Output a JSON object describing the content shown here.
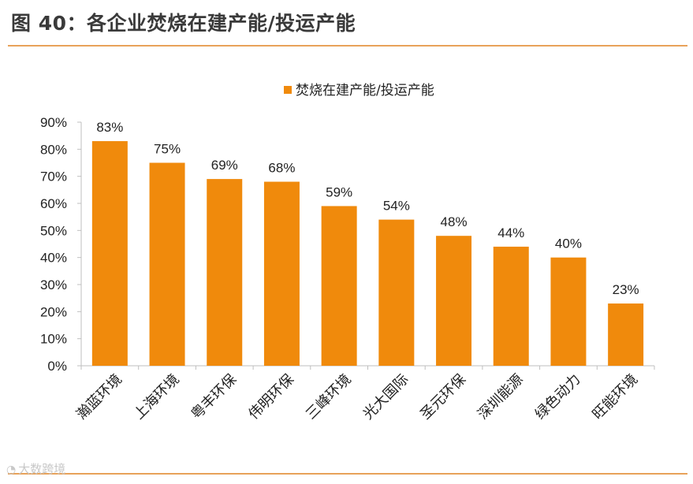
{
  "figure_title": "图 40：各企业焚烧在建产能/投运产能",
  "watermark": "大数跨境",
  "colors": {
    "bar": "#F08A0C",
    "rule": "#E8A25A",
    "axis": "#BFBFBF",
    "text": "#222222"
  },
  "chart_data": {
    "type": "bar",
    "title": "",
    "xlabel": "",
    "ylabel": "",
    "categories": [
      "瀚蓝环境",
      "上海环境",
      "粤丰环保",
      "伟明环保",
      "三峰环境",
      "光大国际",
      "圣元环保",
      "深圳能源",
      "绿色动力",
      "旺能环境"
    ],
    "series": [
      {
        "name": "焚烧在建产能/投运产能",
        "values": [
          83,
          75,
          69,
          68,
          59,
          54,
          48,
          44,
          40,
          23
        ],
        "data_labels": [
          "83%",
          "75%",
          "69%",
          "68%",
          "59%",
          "54%",
          "48%",
          "44%",
          "40%",
          "23%"
        ]
      }
    ],
    "ylim": [
      0,
      90
    ],
    "yticks": [
      0,
      10,
      20,
      30,
      40,
      50,
      60,
      70,
      80,
      90
    ],
    "ytick_labels": [
      "0%",
      "10%",
      "20%",
      "30%",
      "40%",
      "50%",
      "60%",
      "70%",
      "80%",
      "90%"
    ],
    "legend_position": "top-center",
    "grid": false
  }
}
